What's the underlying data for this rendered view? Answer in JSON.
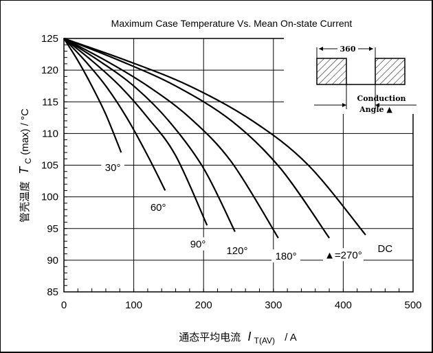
{
  "chart_data": {
    "type": "line",
    "title": "Maximum Case Temperature Vs. Mean On-state Current",
    "xlabel_prefix": "通态平均电流",
    "xlabel_symbol": "I",
    "xlabel_subscript": "T(AV)",
    "xlabel_unit": "/  A",
    "ylabel_prefix": "管壳温度",
    "ylabel_symbol": "T",
    "ylabel_subscript": "C",
    "ylabel_unit": "(max) / °C",
    "xlim": [
      0,
      500
    ],
    "ylim": [
      85,
      125
    ],
    "xticks": [
      "0",
      "100",
      "200",
      "300",
      "400",
      "500"
    ],
    "yticks": [
      "125",
      "120",
      "115",
      "110",
      "105",
      "100",
      "95",
      "90",
      "85"
    ],
    "grid": true,
    "series": [
      {
        "name": "30°",
        "x": [
          0,
          20,
          40,
          60,
          82
        ],
        "y": [
          125,
          121.5,
          117.5,
          113,
          107
        ]
      },
      {
        "name": "60°",
        "x": [
          0,
          30,
          60,
          90,
          120,
          145
        ],
        "y": [
          125,
          121.5,
          117.5,
          112.5,
          106.5,
          101
        ]
      },
      {
        "name": "90°",
        "x": [
          0,
          40,
          80,
          120,
          160,
          205
        ],
        "y": [
          125,
          121.5,
          117.5,
          112.5,
          106.5,
          95.5
        ]
      },
      {
        "name": "120°",
        "x": [
          0,
          50,
          100,
          150,
          200,
          245
        ],
        "y": [
          125,
          121.5,
          117.5,
          112,
          104.5,
          94.5
        ]
      },
      {
        "name": "180°",
        "x": [
          0,
          60,
          120,
          180,
          240,
          307
        ],
        "y": [
          125,
          121.5,
          117.5,
          112.5,
          105.5,
          93.5
        ]
      },
      {
        "name": "270°",
        "x": [
          0,
          80,
          160,
          240,
          310,
          380
        ],
        "y": [
          125,
          121.5,
          117.5,
          112,
          104.5,
          93.5
        ]
      },
      {
        "name": "DC",
        "x": [
          0,
          90,
          180,
          270,
          350,
          432
        ],
        "y": [
          125,
          121.5,
          117.5,
          112,
          105,
          94
        ]
      }
    ],
    "curve_labels": [
      {
        "text": "30°",
        "x": 70,
        "y": 104.3
      },
      {
        "text": "60°",
        "x": 135,
        "y": 98
      },
      {
        "text": "90°",
        "x": 192,
        "y": 92.2
      },
      {
        "text": "120°",
        "x": 248,
        "y": 91.2
      },
      {
        "text": "180°",
        "x": 318,
        "y": 90.3
      },
      {
        "text": "▲=270°",
        "x": 400,
        "y": 90.5
      },
      {
        "text": "DC",
        "x": 460,
        "y": 91.5
      }
    ],
    "inset": {
      "period_label": "360",
      "conduction_label": "Conduction",
      "angle_label": "Angle ▲"
    }
  }
}
